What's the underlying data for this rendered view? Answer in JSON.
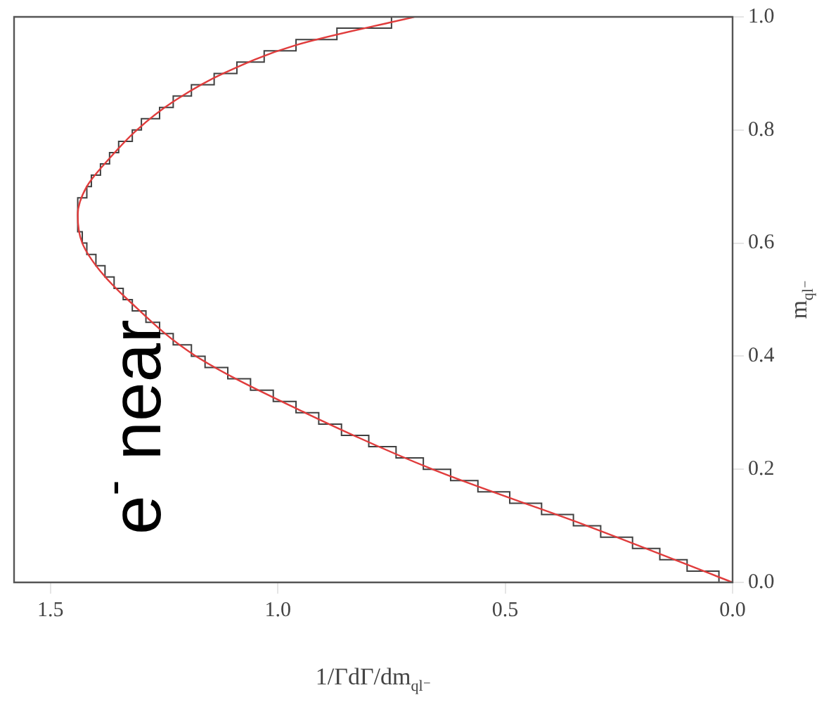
{
  "chart_data": {
    "type": "step",
    "orientation": "horizontal",
    "xlabel": "1/ΓdΓ/dm$_{ql⁻}$",
    "ylabel": "m$_{ql⁻}$",
    "annotations": [
      "e$^{-}$ near"
    ],
    "x": [
      0,
      0.02,
      0.04,
      0.06,
      0.08,
      0.1,
      0.12,
      0.14,
      0.16,
      0.18,
      0.2,
      0.22,
      0.24,
      0.26,
      0.28,
      0.3,
      0.32,
      0.34,
      0.36,
      0.38,
      0.4,
      0.42,
      0.44,
      0.46,
      0.48,
      0.5,
      0.52,
      0.54,
      0.56,
      0.58,
      0.6,
      0.62,
      0.64,
      0.66,
      0.68,
      0.7,
      0.72,
      0.74,
      0.76,
      0.78,
      0.8,
      0.82,
      0.84,
      0.86,
      0.88,
      0.9,
      0.92,
      0.94,
      0.96,
      0.98,
      1.0
    ],
    "values": [
      0.03,
      0.1,
      0.16,
      0.22,
      0.29,
      0.35,
      0.42,
      0.49,
      0.56,
      0.62,
      0.68,
      0.74,
      0.8,
      0.86,
      0.91,
      0.96,
      1.01,
      1.06,
      1.11,
      1.16,
      1.19,
      1.23,
      1.26,
      1.29,
      1.32,
      1.34,
      1.36,
      1.38,
      1.4,
      1.42,
      1.43,
      1.44,
      1.44,
      1.44,
      1.42,
      1.41,
      1.39,
      1.37,
      1.35,
      1.32,
      1.3,
      1.26,
      1.23,
      1.19,
      1.14,
      1.09,
      1.03,
      0.96,
      0.87,
      0.75,
      0.75
    ],
    "color": "#404040",
    "series": [
      {
        "type": "line",
        "color": "#e03c3c",
        "x": [
          0,
          0.1,
          0.2,
          0.3,
          0.4,
          0.5,
          0.55,
          0.6,
          0.65,
          0.7,
          0.75,
          0.8,
          0.85,
          0.9,
          0.95,
          1.0
        ],
        "values": [
          0,
          0.32,
          0.66,
          0.94,
          1.18,
          1.33,
          1.39,
          1.43,
          1.44,
          1.42,
          1.37,
          1.31,
          1.23,
          1.12,
          0.96,
          0.7
        ]
      }
    ],
    "xlim": [
      1.58,
      0
    ],
    "xticks": [
      {
        "value": 0,
        "label": "0.0"
      },
      {
        "value": 0.5,
        "label": "0.5"
      },
      {
        "value": 1.0,
        "label": "1.0"
      },
      {
        "value": 1.5,
        "label": "1.5"
      }
    ],
    "grid": false,
    "legend": false,
    "ylim": [
      0,
      1.0
    ],
    "yticks": [
      {
        "value": 0,
        "label": "0.0"
      },
      {
        "value": 0.2,
        "label": "0.2"
      },
      {
        "value": 0.4,
        "label": "0.4"
      },
      {
        "value": 0.6,
        "label": "0.6"
      },
      {
        "value": 0.8,
        "label": "0.8"
      },
      {
        "value": 1.0,
        "label": "1.0"
      }
    ]
  }
}
